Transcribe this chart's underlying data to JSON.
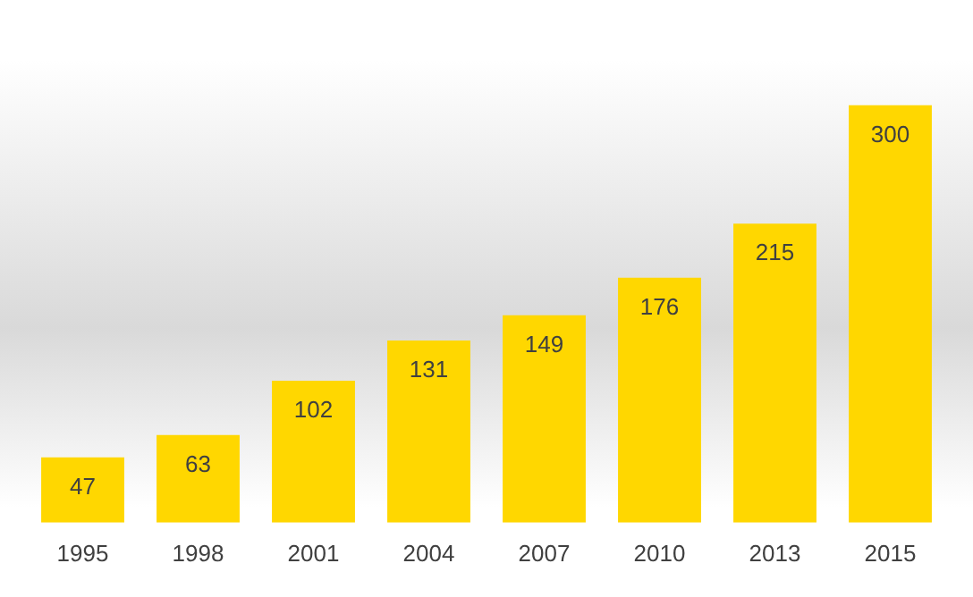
{
  "chart_data": {
    "type": "bar",
    "categories": [
      "1995",
      "1998",
      "2001",
      "2004",
      "2007",
      "2010",
      "2013",
      "2015"
    ],
    "values": [
      47,
      63,
      102,
      131,
      149,
      176,
      215,
      300
    ],
    "color": "#ffd700",
    "data_labels": true,
    "grid": false,
    "legend": false,
    "tick_labels": "x"
  }
}
